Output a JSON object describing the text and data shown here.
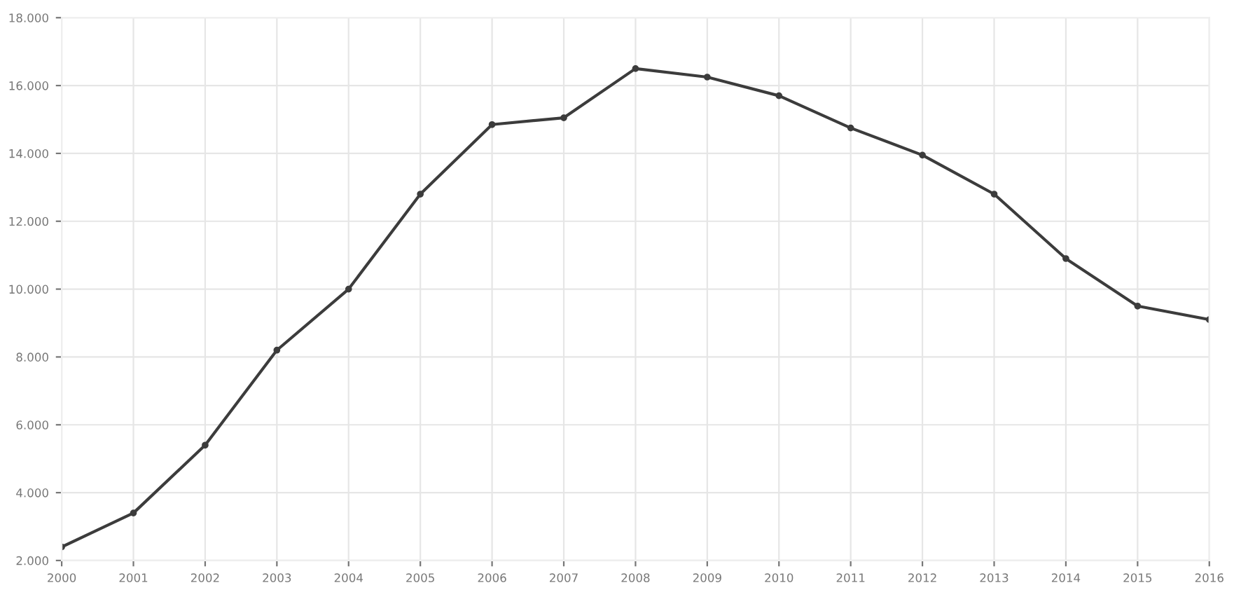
{
  "chart_data": {
    "type": "line",
    "x": [
      2000,
      2001,
      2002,
      2003,
      2004,
      2005,
      2006,
      2007,
      2008,
      2009,
      2010,
      2011,
      2012,
      2013,
      2014,
      2015,
      2016
    ],
    "series": [
      {
        "color": "#3c3c3c",
        "values": [
          2400,
          3400,
          5400,
          8200,
          10000,
          12800,
          14850,
          15050,
          16500,
          16250,
          15700,
          14750,
          13950,
          12800,
          10900,
          9500,
          9100
        ]
      }
    ],
    "xlim": [
      2000,
      2016
    ],
    "xticks": [
      2000,
      2001,
      2002,
      2003,
      2004,
      2005,
      2006,
      2007,
      2008,
      2009,
      2010,
      2011,
      2012,
      2013,
      2014,
      2015,
      2016
    ],
    "ylim": [
      2000,
      18000
    ],
    "yticks": [
      {
        "value": 2000,
        "label": "2.000"
      },
      {
        "value": 4000,
        "label": "4.000"
      },
      {
        "value": 6000,
        "label": "6.000"
      },
      {
        "value": 8000,
        "label": "8.000"
      },
      {
        "value": 10000,
        "label": "10.000"
      },
      {
        "value": 12000,
        "label": "12.000"
      },
      {
        "value": 14000,
        "label": "14.000"
      },
      {
        "value": 16000,
        "label": "16.000"
      },
      {
        "value": 18000,
        "label": "18.000"
      }
    ],
    "grid": true,
    "marker": "circle",
    "line_style": "solid"
  }
}
